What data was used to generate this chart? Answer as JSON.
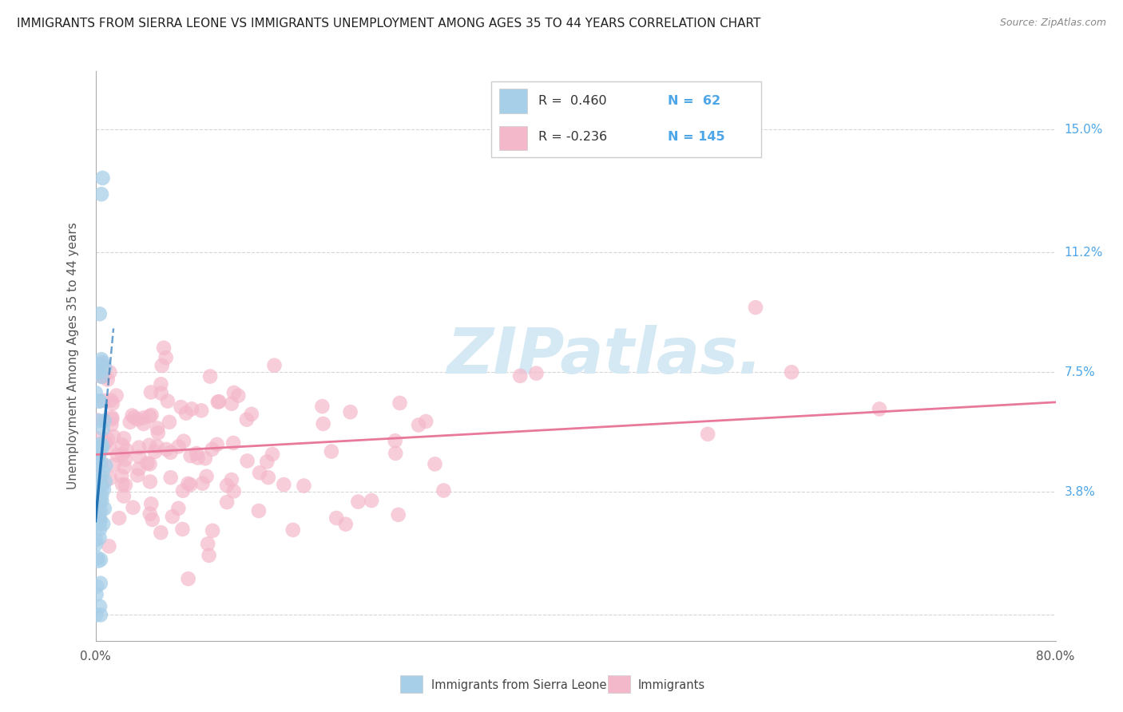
{
  "title": "IMMIGRANTS FROM SIERRA LEONE VS IMMIGRANTS UNEMPLOYMENT AMONG AGES 35 TO 44 YEARS CORRELATION CHART",
  "source": "Source: ZipAtlas.com",
  "ylabel": "Unemployment Among Ages 35 to 44 years",
  "xlim": [
    0.0,
    0.8
  ],
  "ylim": [
    -0.008,
    0.168
  ],
  "yticks": [
    0.0,
    0.038,
    0.075,
    0.112,
    0.15
  ],
  "ytick_labels": [
    "",
    "3.8%",
    "7.5%",
    "11.2%",
    "15.0%"
  ],
  "xticks": [
    0.0,
    0.16,
    0.32,
    0.48,
    0.64,
    0.8
  ],
  "xtick_labels": [
    "0.0%",
    "",
    "",
    "",
    "",
    "80.0%"
  ],
  "blue_color": "#a8cfe8",
  "pink_color": "#f4b8cb",
  "blue_line_color": "#2171b5",
  "pink_line_color": "#e8799a",
  "tick_label_color_right": "#4da6e8",
  "watermark_color": "#d5e9f5",
  "legend_border": "#cccccc",
  "grid_color": "#cccccc",
  "spine_color": "#aaaaaa"
}
